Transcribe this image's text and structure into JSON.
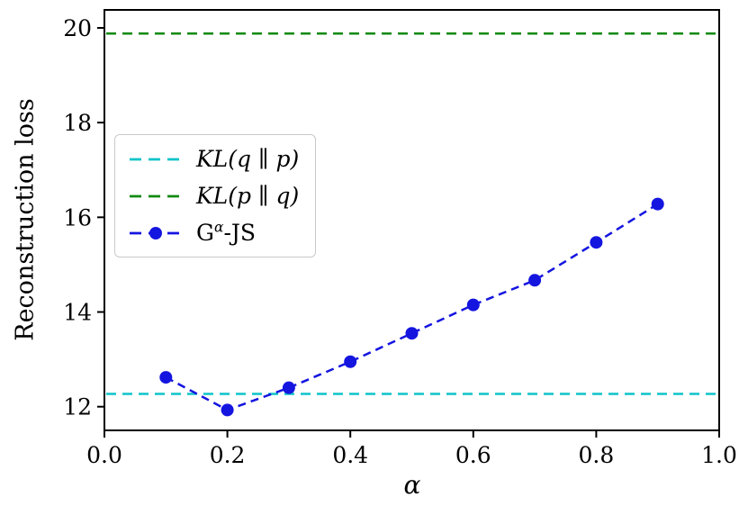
{
  "figure": {
    "background": "#ffffff",
    "frame_color": "#000000"
  },
  "axes": {
    "xlabel": "α",
    "ylabel": "Reconstruction loss"
  },
  "legend": {
    "items": [
      {
        "label": "KL(q ∥ p)",
        "color": "#0fc4c9",
        "linestyle": "dashed",
        "marker": false,
        "italic": true
      },
      {
        "label": "KL(p ∥ q)",
        "color": "#128a12",
        "linestyle": "dashed",
        "marker": false,
        "italic": true
      },
      {
        "parts": {
          "pre": "G",
          "sup": "α",
          "post": "-JS"
        },
        "color": "#1515e0",
        "linestyle": "dashed",
        "marker": true,
        "italic": false
      }
    ]
  },
  "chart_data": {
    "type": "line",
    "title": "",
    "xlabel": "α",
    "ylabel": "Reconstruction loss",
    "xlim": [
      0.0,
      1.0
    ],
    "ylim": [
      11.5,
      20.38
    ],
    "xticks": [
      0.0,
      0.2,
      0.4,
      0.6,
      0.8,
      1.0
    ],
    "xtick_labels": [
      "0.0",
      "0.2",
      "0.4",
      "0.6",
      "0.8",
      "1.0"
    ],
    "yticks": [
      12,
      14,
      16,
      18,
      20
    ],
    "ytick_labels": [
      "12",
      "14",
      "16",
      "18",
      "20"
    ],
    "grid": false,
    "legend_position": "center-left",
    "series": [
      {
        "name": "KL(q ∥ p)",
        "kind": "hline",
        "y": 12.27,
        "color": "#0fc4c9",
        "linestyle": "dashed"
      },
      {
        "name": "KL(p ∥ q)",
        "kind": "hline",
        "y": 19.88,
        "color": "#128a12",
        "linestyle": "dashed"
      },
      {
        "name": "G^α-JS",
        "kind": "line",
        "x": [
          0.1,
          0.2,
          0.3,
          0.4,
          0.5,
          0.6,
          0.7,
          0.8,
          0.9
        ],
        "y": [
          12.62,
          11.93,
          12.4,
          12.95,
          13.55,
          14.15,
          14.67,
          15.47,
          16.28
        ],
        "color": "#1515e0",
        "linestyle": "dashed",
        "marker": "o"
      }
    ]
  }
}
